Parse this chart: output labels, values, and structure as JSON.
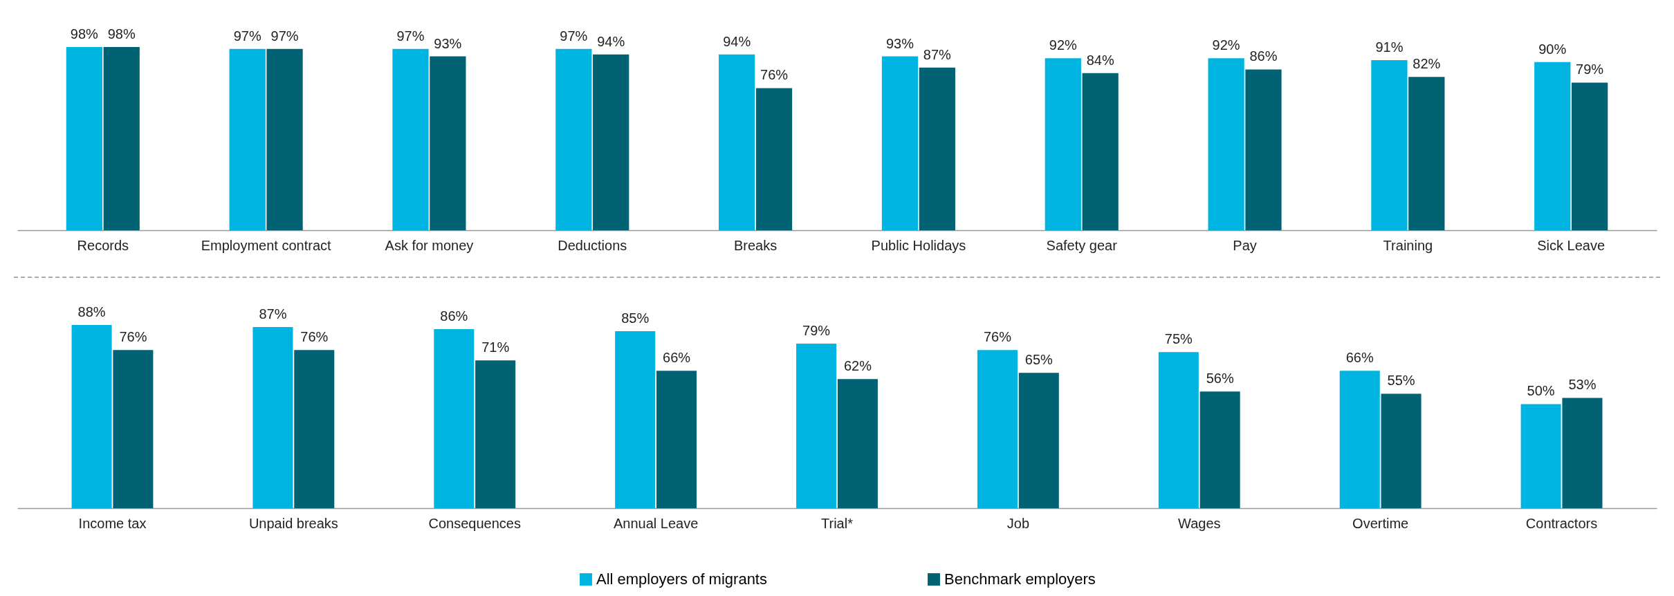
{
  "chart_data": [
    {
      "type": "bar",
      "categories": [
        "Records",
        "Employment contract",
        "Ask for money",
        "Deductions",
        "Breaks",
        "Public Holidays",
        "Safety gear",
        "Pay",
        "Training",
        "Sick Leave"
      ],
      "legend": false,
      "series": [
        {
          "color": "#00b4e1",
          "values": [
            98,
            97,
            97,
            97,
            94,
            93,
            92,
            92,
            91,
            90
          ],
          "value_labels": [
            "98%",
            "97%",
            "97%",
            "97%",
            "94%",
            "93%",
            "92%",
            "92%",
            "91%",
            "90%"
          ]
        },
        {
          "color": "#006272",
          "values": [
            98,
            97,
            93,
            94,
            76,
            87,
            84,
            86,
            82,
            79
          ],
          "value_labels": [
            "98%",
            "97%",
            "93%",
            "94%",
            "76%",
            "87%",
            "84%",
            "86%",
            "82%",
            "79%"
          ]
        }
      ]
    },
    {
      "type": "bar",
      "categories": [
        "Income tax",
        "Unpaid breaks",
        "Consequences",
        "Annual Leave",
        "Trial*",
        "Job",
        "Wages",
        "Overtime",
        "Contractors"
      ],
      "legend": "bottom",
      "series": [
        {
          "name": "All employers of migrants",
          "color": "#00b4e1",
          "values": [
            88,
            87,
            86,
            85,
            79,
            76,
            75,
            66,
            50
          ],
          "value_labels": [
            "88%",
            "87%",
            "86%",
            "85%",
            "79%",
            "76%",
            "75%",
            "66%",
            "50%"
          ]
        },
        {
          "name": "Benchmark employers",
          "color": "#006272",
          "values": [
            76,
            76,
            71,
            66,
            62,
            65,
            56,
            55,
            53
          ],
          "value_labels": [
            "76%",
            "76%",
            "71%",
            "66%",
            "62%",
            "65%",
            "56%",
            "55%",
            "53%"
          ]
        }
      ]
    }
  ]
}
